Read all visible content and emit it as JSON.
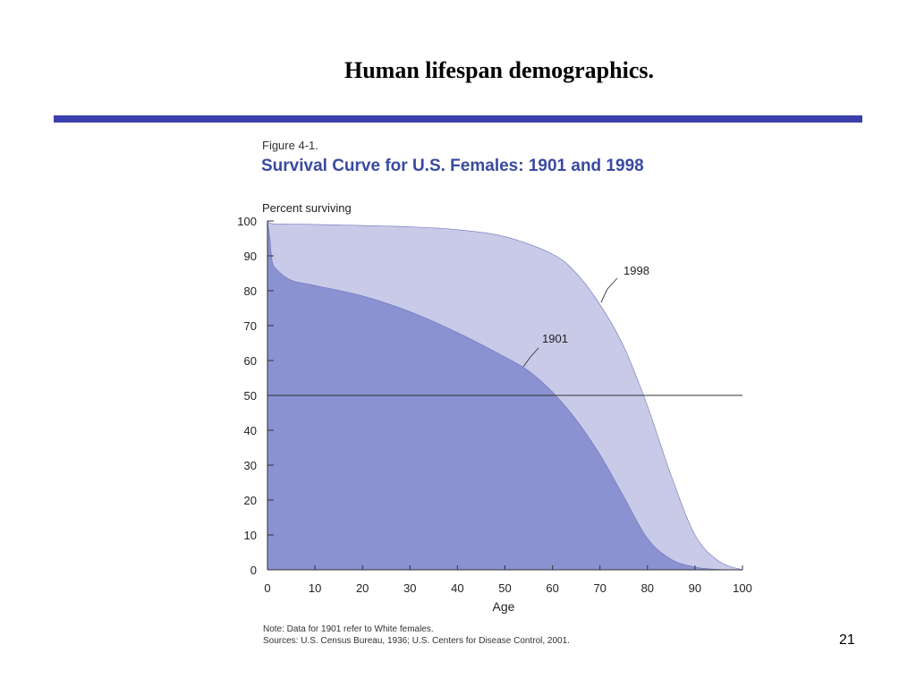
{
  "slide": {
    "title": "Human lifespan demographics.",
    "page_number": "21",
    "rule_color": "#3b40ad"
  },
  "figure": {
    "label": "Figure 4-1.",
    "note": "Note:  Data for 1901 refer to White females.",
    "sources": "Sources:  U.S. Census Bureau, 1936; U.S. Centers for Disease Control, 2001."
  },
  "chart_data": {
    "type": "area",
    "title": "Survival Curve for U.S. Females:  1901 and 1998",
    "xlabel": "Age",
    "ylabel": "Percent surviving",
    "xlim": [
      0,
      100
    ],
    "ylim": [
      0,
      100
    ],
    "xticks": [
      0,
      10,
      20,
      30,
      40,
      50,
      60,
      70,
      80,
      90,
      100
    ],
    "yticks": [
      0,
      10,
      20,
      30,
      40,
      50,
      60,
      70,
      80,
      90,
      100
    ],
    "reference_line_y": 50,
    "grid": false,
    "legend": "inline curve labels",
    "series": [
      {
        "name": "1998",
        "color": "#c8cae8",
        "x": [
          0,
          1,
          5,
          10,
          20,
          30,
          40,
          50,
          60,
          65,
          70,
          75,
          80,
          85,
          90,
          95,
          100
        ],
        "y": [
          100,
          99.2,
          99.1,
          99,
          98.7,
          98.3,
          97.5,
          95.5,
          90.5,
          85,
          76,
          64,
          47,
          27,
          10,
          2.5,
          0
        ]
      },
      {
        "name": "1901",
        "color": "#8a92d2",
        "x": [
          0,
          0.5,
          1,
          2,
          5,
          10,
          20,
          30,
          40,
          50,
          55,
          60,
          65,
          70,
          75,
          80,
          85,
          90,
          95,
          100
        ],
        "y": [
          100,
          95,
          88.5,
          86,
          83,
          81.5,
          78.5,
          74,
          68,
          61,
          57,
          51,
          43,
          33,
          21,
          9,
          3,
          0.8,
          0.1,
          0
        ]
      }
    ]
  }
}
